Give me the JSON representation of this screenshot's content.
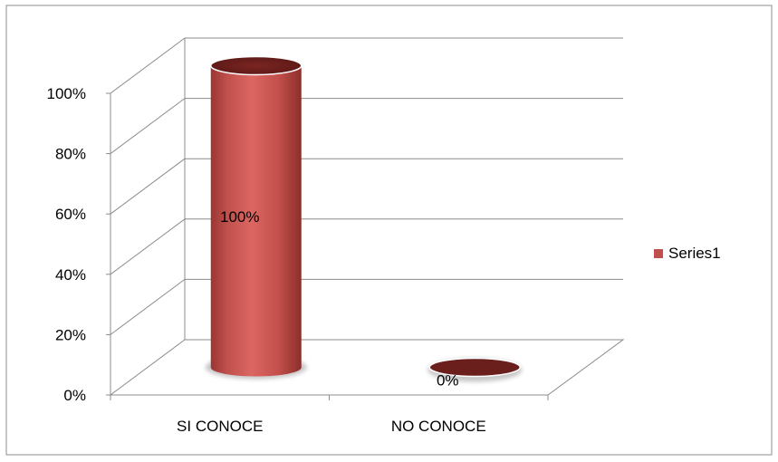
{
  "chart_data": {
    "type": "bar",
    "style": "3d-cylinder",
    "categories": [
      "SI CONOCE",
      "NO CONOCE"
    ],
    "series": [
      {
        "name": "Series1",
        "values": [
          100,
          0
        ],
        "data_labels": [
          "100%",
          "0%"
        ]
      }
    ],
    "title": "",
    "xlabel": "",
    "ylabel": "",
    "ylim": [
      0,
      100
    ],
    "yticks": [
      "0%",
      "20%",
      "40%",
      "60%",
      "80%",
      "100%"
    ],
    "grid": true,
    "legend": "right",
    "colors": {
      "bar_body": "#c0504d",
      "bar_light": "#dd6a66",
      "bar_dark": "#8c2e2b",
      "bar_top": "#6b1f1d",
      "gridline": "#8c8c8c",
      "frame": "#8c8c8c"
    }
  }
}
